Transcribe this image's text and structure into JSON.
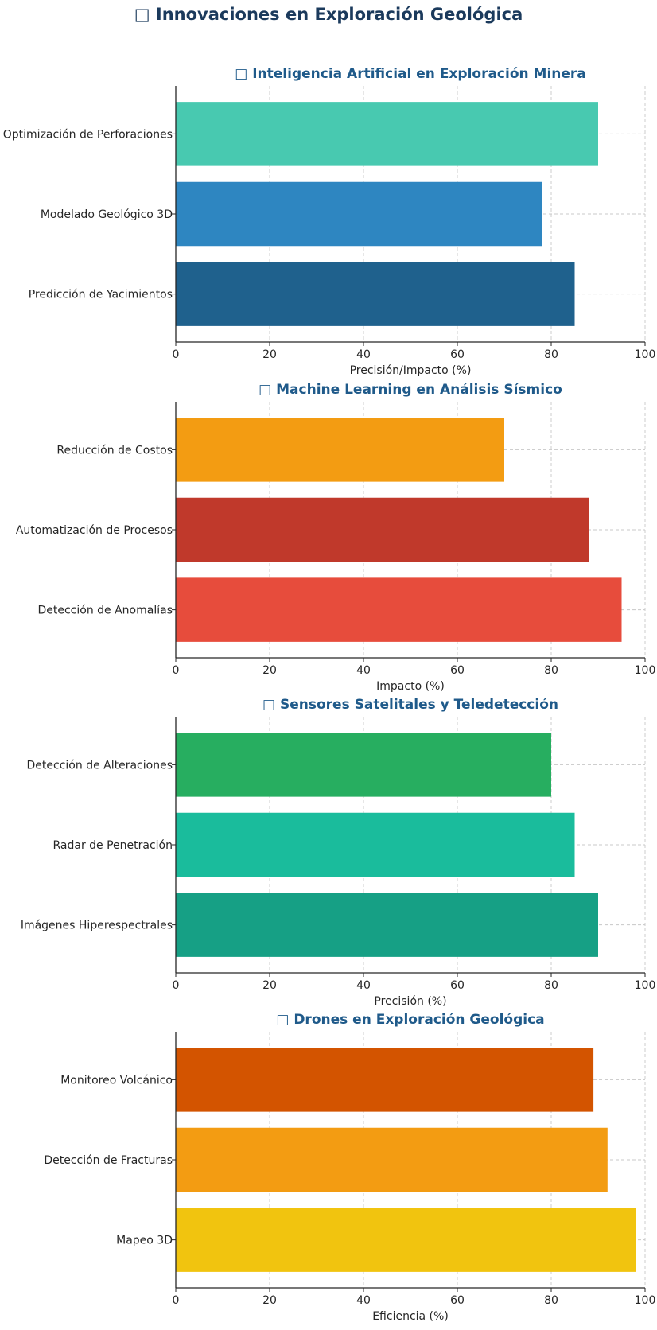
{
  "title": "□ Innovaciones en Exploración Geológica",
  "chart_data": [
    {
      "type": "bar",
      "orientation": "horizontal",
      "title": "□ Inteligencia Artificial en Exploración Minera",
      "xlabel": "Precisión/Impacto (%)",
      "ylabel": "",
      "categories": [
        "Optimización de Perforaciones",
        "Modelado Geológico 3D",
        "Predicción de Yacimientos"
      ],
      "values": [
        90,
        78,
        85
      ],
      "colors": [
        "#48c9b0",
        "#2e86c1",
        "#1f618d"
      ],
      "xlim": [
        0,
        100
      ],
      "xticks": [
        "0",
        "20",
        "40",
        "60",
        "80",
        "100"
      ],
      "grid": true
    },
    {
      "type": "bar",
      "orientation": "horizontal",
      "title": "□ Machine Learning en Análisis Sísmico",
      "xlabel": "Impacto (%)",
      "ylabel": "",
      "categories": [
        "Reducción de Costos",
        "Automatización de Procesos",
        "Detección de Anomalías"
      ],
      "values": [
        70,
        88,
        95
      ],
      "colors": [
        "#f39c12",
        "#c0392b",
        "#e74c3c"
      ],
      "xlim": [
        0,
        100
      ],
      "xticks": [
        "0",
        "20",
        "40",
        "60",
        "80",
        "100"
      ],
      "grid": true
    },
    {
      "type": "bar",
      "orientation": "horizontal",
      "title": "□ Sensores Satelitales y Teledetección",
      "xlabel": "Precisión (%)",
      "ylabel": "",
      "categories": [
        "Detección de Alteraciones",
        "Radar de Penetración",
        "Imágenes Hiperespectrales"
      ],
      "values": [
        80,
        85,
        90
      ],
      "colors": [
        "#27ae60",
        "#1abc9c",
        "#16a085"
      ],
      "xlim": [
        0,
        100
      ],
      "xticks": [
        "0",
        "20",
        "40",
        "60",
        "80",
        "100"
      ],
      "grid": true
    },
    {
      "type": "bar",
      "orientation": "horizontal",
      "title": "□ Drones en Exploración Geológica",
      "xlabel": "Eficiencia (%)",
      "ylabel": "",
      "categories": [
        "Monitoreo Volcánico",
        "Detección de Fracturas",
        "Mapeo 3D"
      ],
      "values": [
        89,
        92,
        98
      ],
      "colors": [
        "#d35400",
        "#f39c12",
        "#f1c40f"
      ],
      "xlim": [
        0,
        100
      ],
      "xticks": [
        "0",
        "20",
        "40",
        "60",
        "80",
        "100"
      ],
      "grid": true
    }
  ],
  "style": {
    "title_color": "#1b3a5c",
    "subtitle_color": "#1f5a8a",
    "axis_color": "#262626",
    "grid_color": "#c8c8c8"
  }
}
